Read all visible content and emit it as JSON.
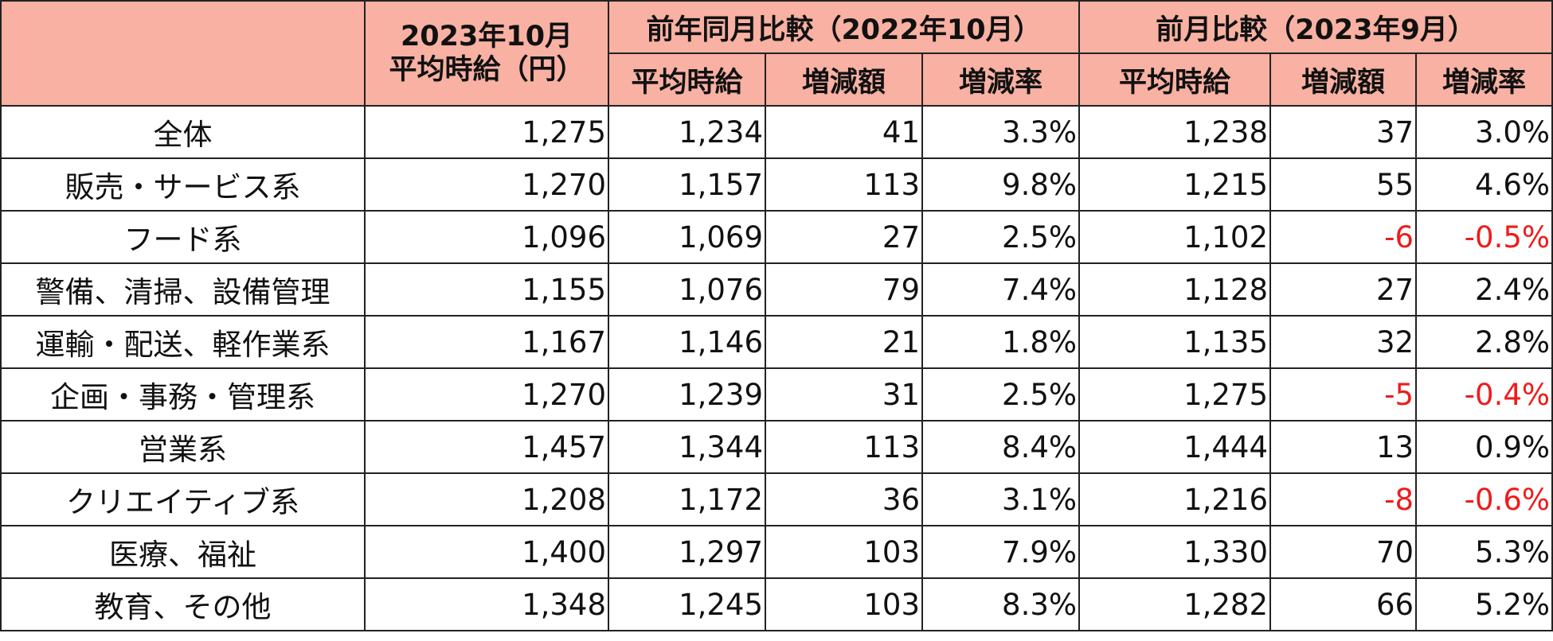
{
  "header": {
    "main_line1": "2023年10月",
    "main_line2": "平均時給（円）",
    "group_yoy": "前年同月比較（2022年10月）",
    "group_mom": "前月比較（2023年9月）",
    "sub_avg_wage": "平均時給",
    "sub_change_amount": "増減額",
    "sub_change_rate": "増減率"
  },
  "colors": {
    "header_bg": "#f8b1a2",
    "negative_text": "#ee1c1c"
  },
  "rows": [
    {
      "category": "全体",
      "wage_2023_10": "1,275",
      "yoy_avg": "1,234",
      "yoy_diff": "41",
      "yoy_rate": "3.3%",
      "mom_avg": "1,238",
      "mom_diff": "37",
      "mom_rate": "3.0%"
    },
    {
      "category": "販売・サービス系",
      "wage_2023_10": "1,270",
      "yoy_avg": "1,157",
      "yoy_diff": "113",
      "yoy_rate": "9.8%",
      "mom_avg": "1,215",
      "mom_diff": "55",
      "mom_rate": "4.6%"
    },
    {
      "category": "フード系",
      "wage_2023_10": "1,096",
      "yoy_avg": "1,069",
      "yoy_diff": "27",
      "yoy_rate": "2.5%",
      "mom_avg": "1,102",
      "mom_diff": "-6",
      "mom_rate": "-0.5%"
    },
    {
      "category": "警備、清掃、設備管理",
      "wage_2023_10": "1,155",
      "yoy_avg": "1,076",
      "yoy_diff": "79",
      "yoy_rate": "7.4%",
      "mom_avg": "1,128",
      "mom_diff": "27",
      "mom_rate": "2.4%"
    },
    {
      "category": "運輸・配送、軽作業系",
      "wage_2023_10": "1,167",
      "yoy_avg": "1,146",
      "yoy_diff": "21",
      "yoy_rate": "1.8%",
      "mom_avg": "1,135",
      "mom_diff": "32",
      "mom_rate": "2.8%"
    },
    {
      "category": "企画・事務・管理系",
      "wage_2023_10": "1,270",
      "yoy_avg": "1,239",
      "yoy_diff": "31",
      "yoy_rate": "2.5%",
      "mom_avg": "1,275",
      "mom_diff": "-5",
      "mom_rate": "-0.4%"
    },
    {
      "category": "営業系",
      "wage_2023_10": "1,457",
      "yoy_avg": "1,344",
      "yoy_diff": "113",
      "yoy_rate": "8.4%",
      "mom_avg": "1,444",
      "mom_diff": "13",
      "mom_rate": "0.9%"
    },
    {
      "category": "クリエイティブ系",
      "wage_2023_10": "1,208",
      "yoy_avg": "1,172",
      "yoy_diff": "36",
      "yoy_rate": "3.1%",
      "mom_avg": "1,216",
      "mom_diff": "-8",
      "mom_rate": "-0.6%"
    },
    {
      "category": "医療、福祉",
      "wage_2023_10": "1,400",
      "yoy_avg": "1,297",
      "yoy_diff": "103",
      "yoy_rate": "7.9%",
      "mom_avg": "1,330",
      "mom_diff": "70",
      "mom_rate": "5.3%"
    },
    {
      "category": "教育、その他",
      "wage_2023_10": "1,348",
      "yoy_avg": "1,245",
      "yoy_diff": "103",
      "yoy_rate": "8.3%",
      "mom_avg": "1,282",
      "mom_diff": "66",
      "mom_rate": "5.2%"
    }
  ]
}
